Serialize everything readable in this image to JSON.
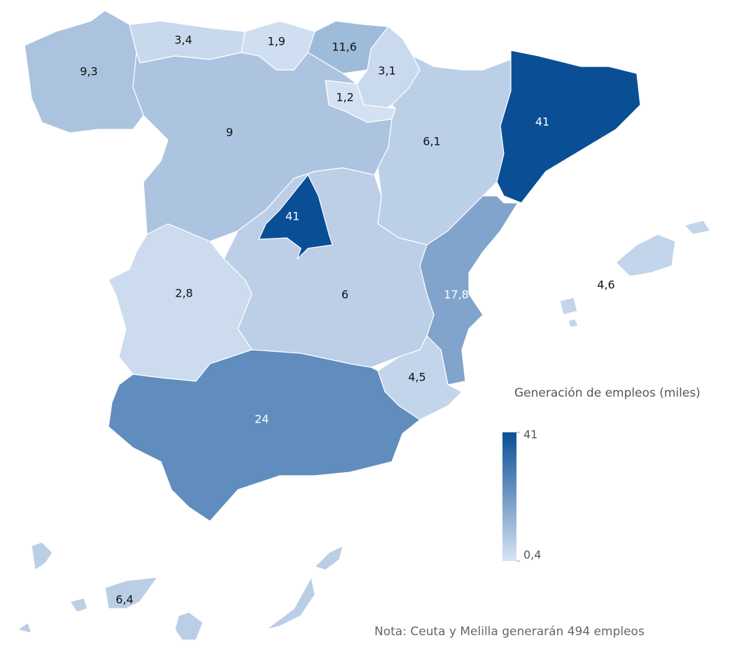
{
  "chart_data": {
    "type": "choropleth",
    "values": [
      9.3,
      3.4,
      1.9,
      11.6,
      3.1,
      1.2,
      9,
      6.1,
      41,
      41,
      2.8,
      6,
      17.8,
      4.5,
      24,
      4.6,
      6.4
    ],
    "value_labels": [
      "9,3",
      "3,4",
      "1,9",
      "11,6",
      "3,1",
      "1,2",
      "9",
      "6,1",
      "41",
      "41",
      "2,8",
      "6",
      "17,8",
      "4,5",
      "24",
      "4,6",
      "6,4"
    ],
    "legend": {
      "title": "Generación de empleos (miles)",
      "ticks": [
        {
          "value": 0.4,
          "label": "0,4"
        },
        41
      ]
    },
    "colors": [
      "#d8e4f4",
      "#0a4f96"
    ],
    "note": "Nota: Ceuta y Melilla generarán 494 empleos"
  }
}
